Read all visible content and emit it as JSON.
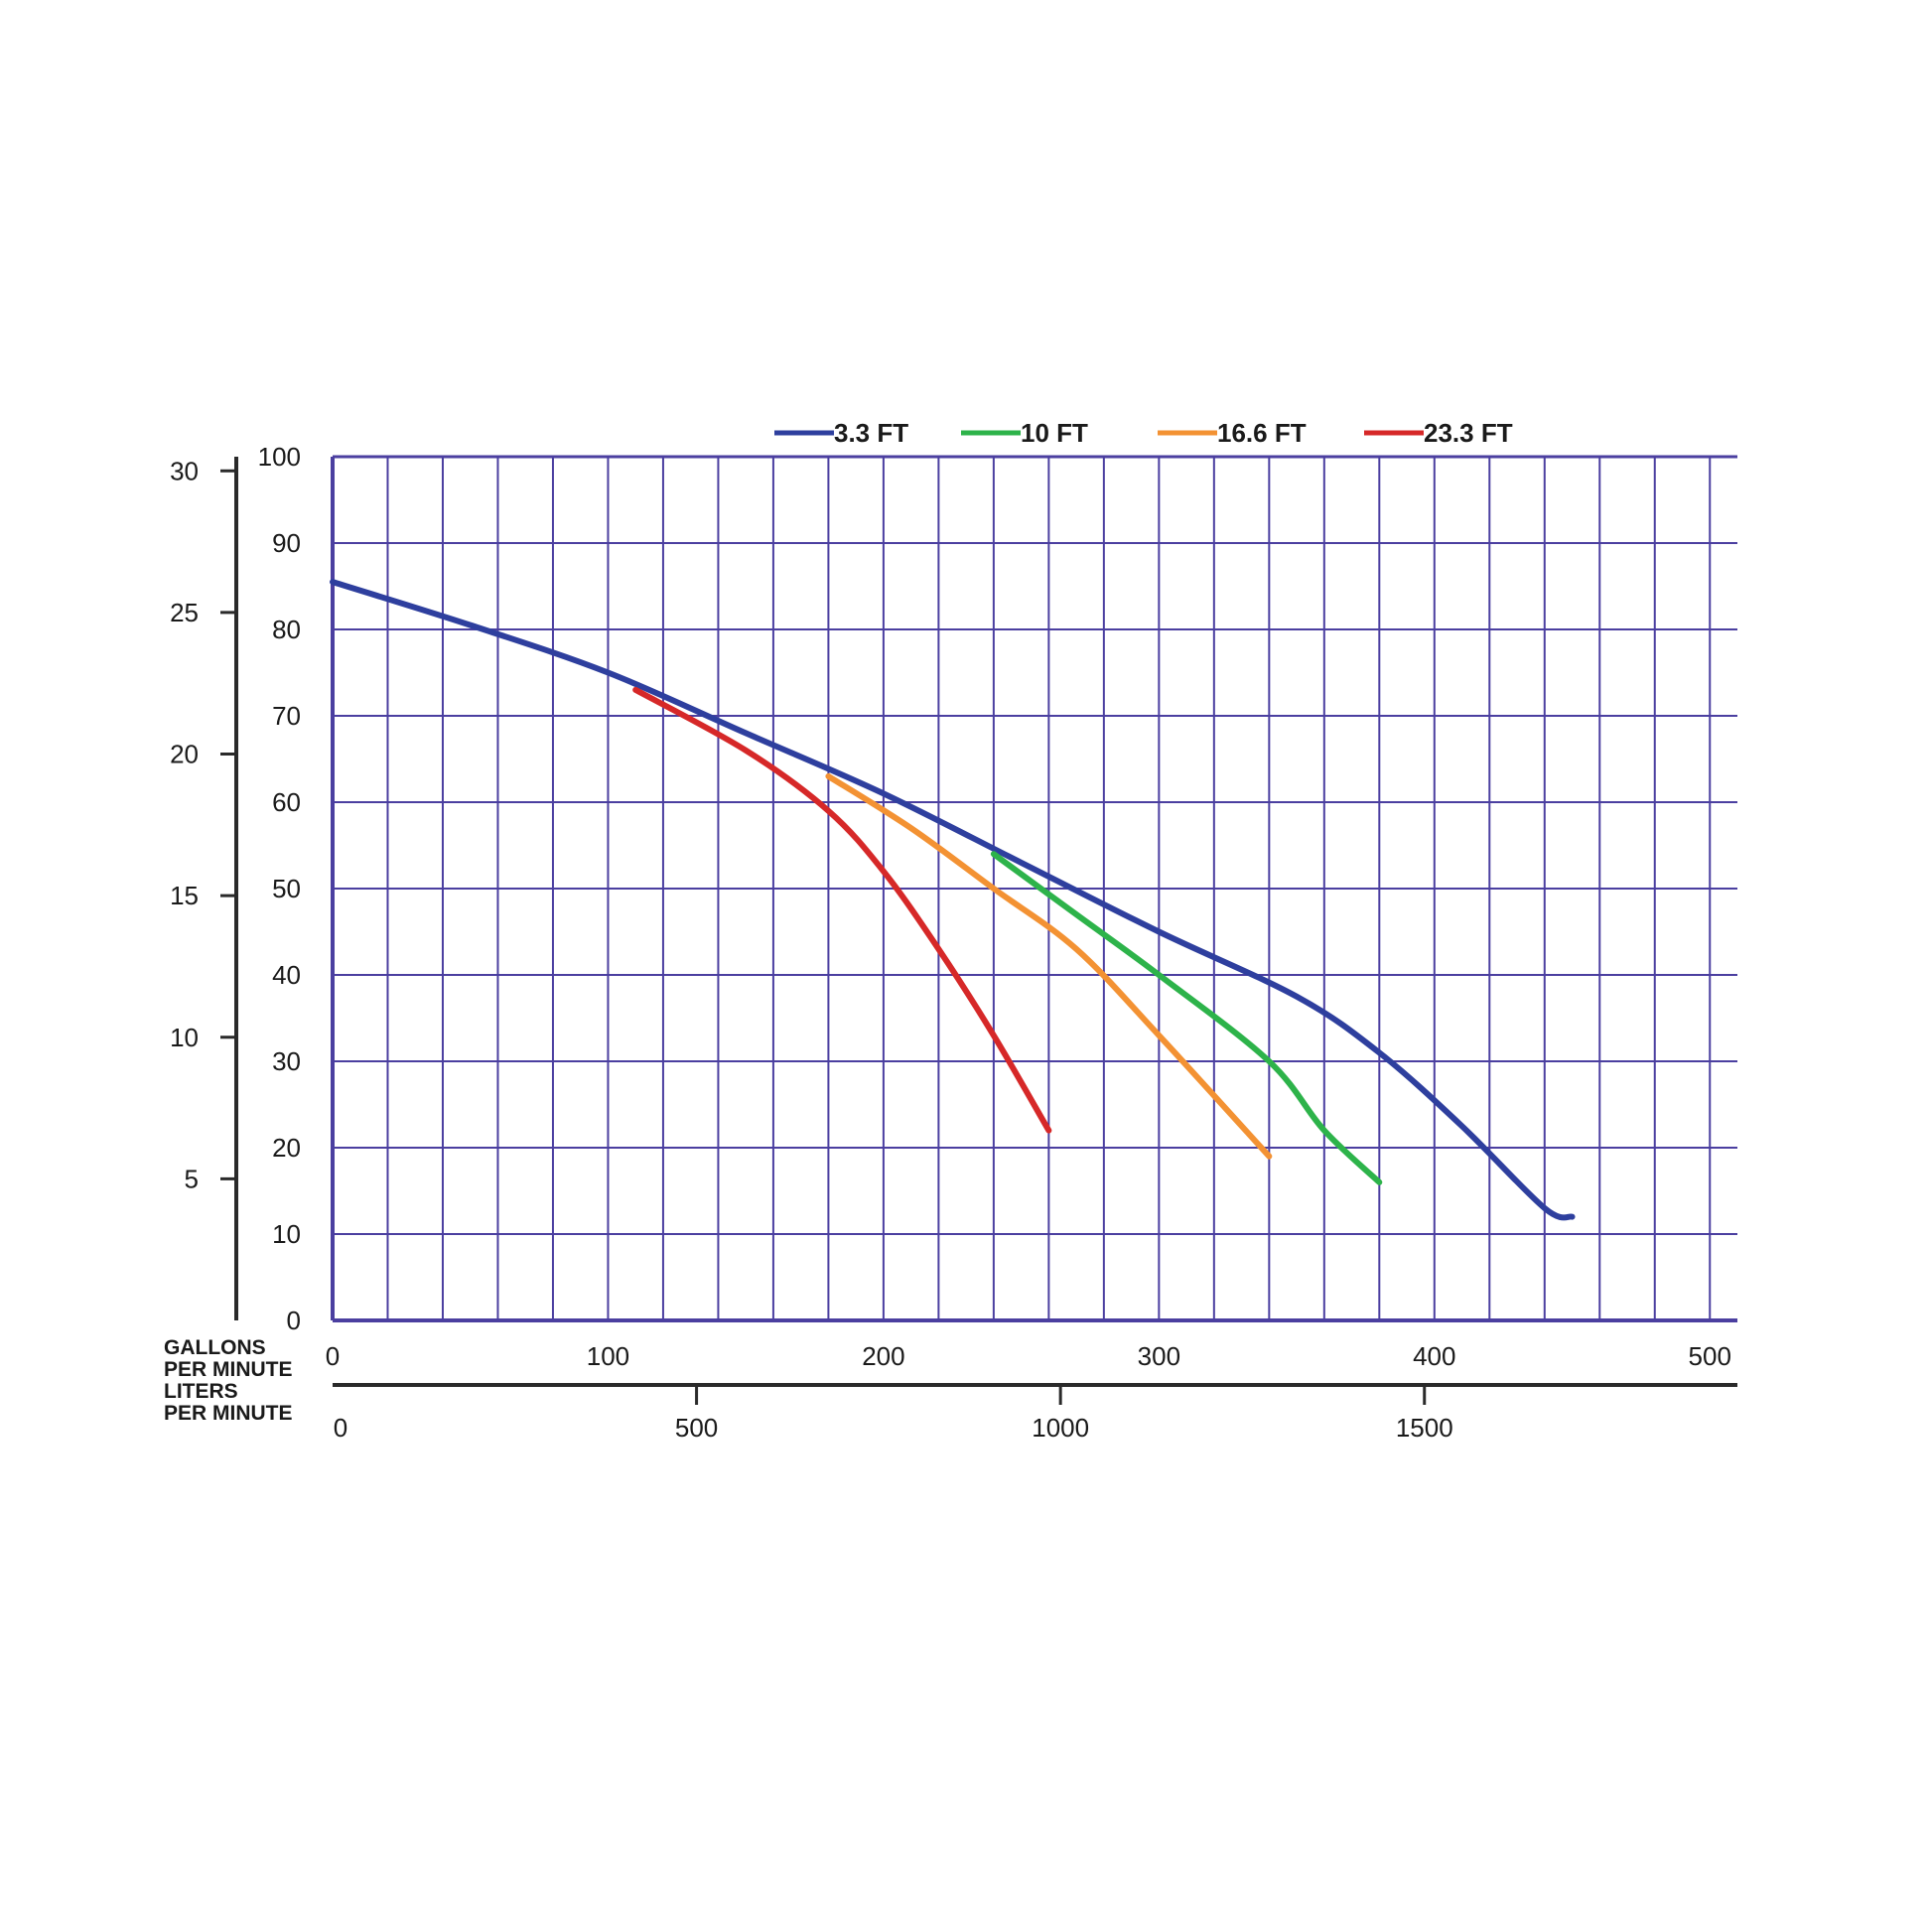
{
  "chart_data": {
    "type": "line",
    "legend_position": "top",
    "grid": true,
    "colors": {
      "grid": "#4b3fa0",
      "axis": "#2a2a2a",
      "background": "#ffffff"
    },
    "y_axis": {
      "ylim": [
        0,
        100
      ],
      "ticks": [
        0,
        10,
        20,
        30,
        40,
        50,
        60,
        70,
        80,
        90,
        100
      ],
      "labels": [
        "0",
        "10",
        "20",
        "30",
        "40",
        "50",
        "60",
        "70",
        "80",
        "90",
        "100"
      ]
    },
    "y_axis_secondary": {
      "ylim": [
        0,
        30.5
      ],
      "ticks": [
        5,
        10,
        15,
        20,
        25,
        30
      ],
      "labels": [
        "5",
        "10",
        "15",
        "20",
        "25",
        "30"
      ]
    },
    "x_axis": {
      "xlim": [
        0,
        510
      ],
      "ticks": [
        0,
        100,
        200,
        300,
        400,
        500
      ],
      "labels": [
        "0",
        "100",
        "200",
        "300",
        "400",
        "500"
      ],
      "unit_label": "GALLONS PER MINUTE",
      "unit_lines": [
        "GALLONS",
        "PER MINUTE"
      ]
    },
    "x_axis_secondary": {
      "xlim": [
        0,
        1930
      ],
      "ticks": [
        0,
        500,
        1000,
        1500
      ],
      "labels": [
        "0",
        "500",
        "1000",
        "1500"
      ],
      "unit_label": "LITERS PER MINUTE",
      "unit_lines": [
        "LITERS",
        "PER MINUTE"
      ]
    },
    "series": [
      {
        "name": "3.3 FT",
        "color": "#2e3f9e",
        "x": [
          0,
          50,
          100,
          150,
          200,
          250,
          300,
          350,
          380,
          410,
          440,
          450
        ],
        "y": [
          85.5,
          80.5,
          75,
          68,
          61,
          53,
          45,
          37.5,
          31,
          22.5,
          13,
          12
        ]
      },
      {
        "name": "10 FT",
        "color": "#2db34a",
        "x": [
          240,
          270,
          300,
          340,
          360,
          380
        ],
        "y": [
          54,
          47,
          40,
          30,
          22,
          16
        ]
      },
      {
        "name": "16.6 FT",
        "color": "#f39233",
        "x": [
          180,
          210,
          240,
          270,
          300,
          340
        ],
        "y": [
          63,
          57,
          50,
          43,
          33,
          19
        ]
      },
      {
        "name": "23.3 FT",
        "color": "#d62828",
        "x": [
          110,
          150,
          180,
          200,
          220,
          240,
          260
        ],
        "y": [
          73,
          66,
          59,
          52,
          43,
          33,
          22
        ]
      }
    ]
  }
}
